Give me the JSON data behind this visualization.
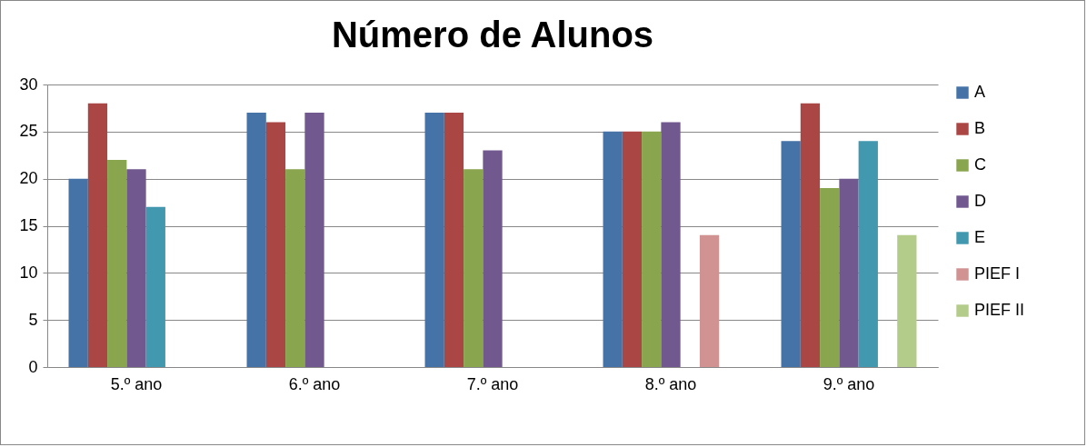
{
  "chart_data": {
    "type": "bar",
    "title": "Número de Alunos",
    "categories": [
      "5.º ano",
      "6.º ano",
      "7.º ano",
      "8.º ano",
      "9.º ano"
    ],
    "series": [
      {
        "name": "A",
        "color": "#4572a7",
        "values": [
          20,
          27,
          27,
          25,
          24
        ]
      },
      {
        "name": "B",
        "color": "#aa4643",
        "values": [
          28,
          26,
          27,
          25,
          28
        ]
      },
      {
        "name": "C",
        "color": "#89a54e",
        "values": [
          22,
          21,
          21,
          25,
          19
        ]
      },
      {
        "name": "D",
        "color": "#71588f",
        "values": [
          21,
          27,
          23,
          26,
          20
        ]
      },
      {
        "name": "E",
        "color": "#4198af",
        "values": [
          17,
          null,
          null,
          null,
          24
        ]
      },
      {
        "name": "PIEF I",
        "color": "#d09392",
        "values": [
          null,
          null,
          null,
          14,
          null
        ]
      },
      {
        "name": "PIEF II",
        "color": "#b3cc8a",
        "values": [
          null,
          null,
          null,
          null,
          14
        ]
      }
    ],
    "ylim": [
      0,
      30
    ],
    "yticks": [
      0,
      5,
      10,
      15,
      20,
      25,
      30
    ],
    "grid": "y",
    "legend": "right"
  }
}
